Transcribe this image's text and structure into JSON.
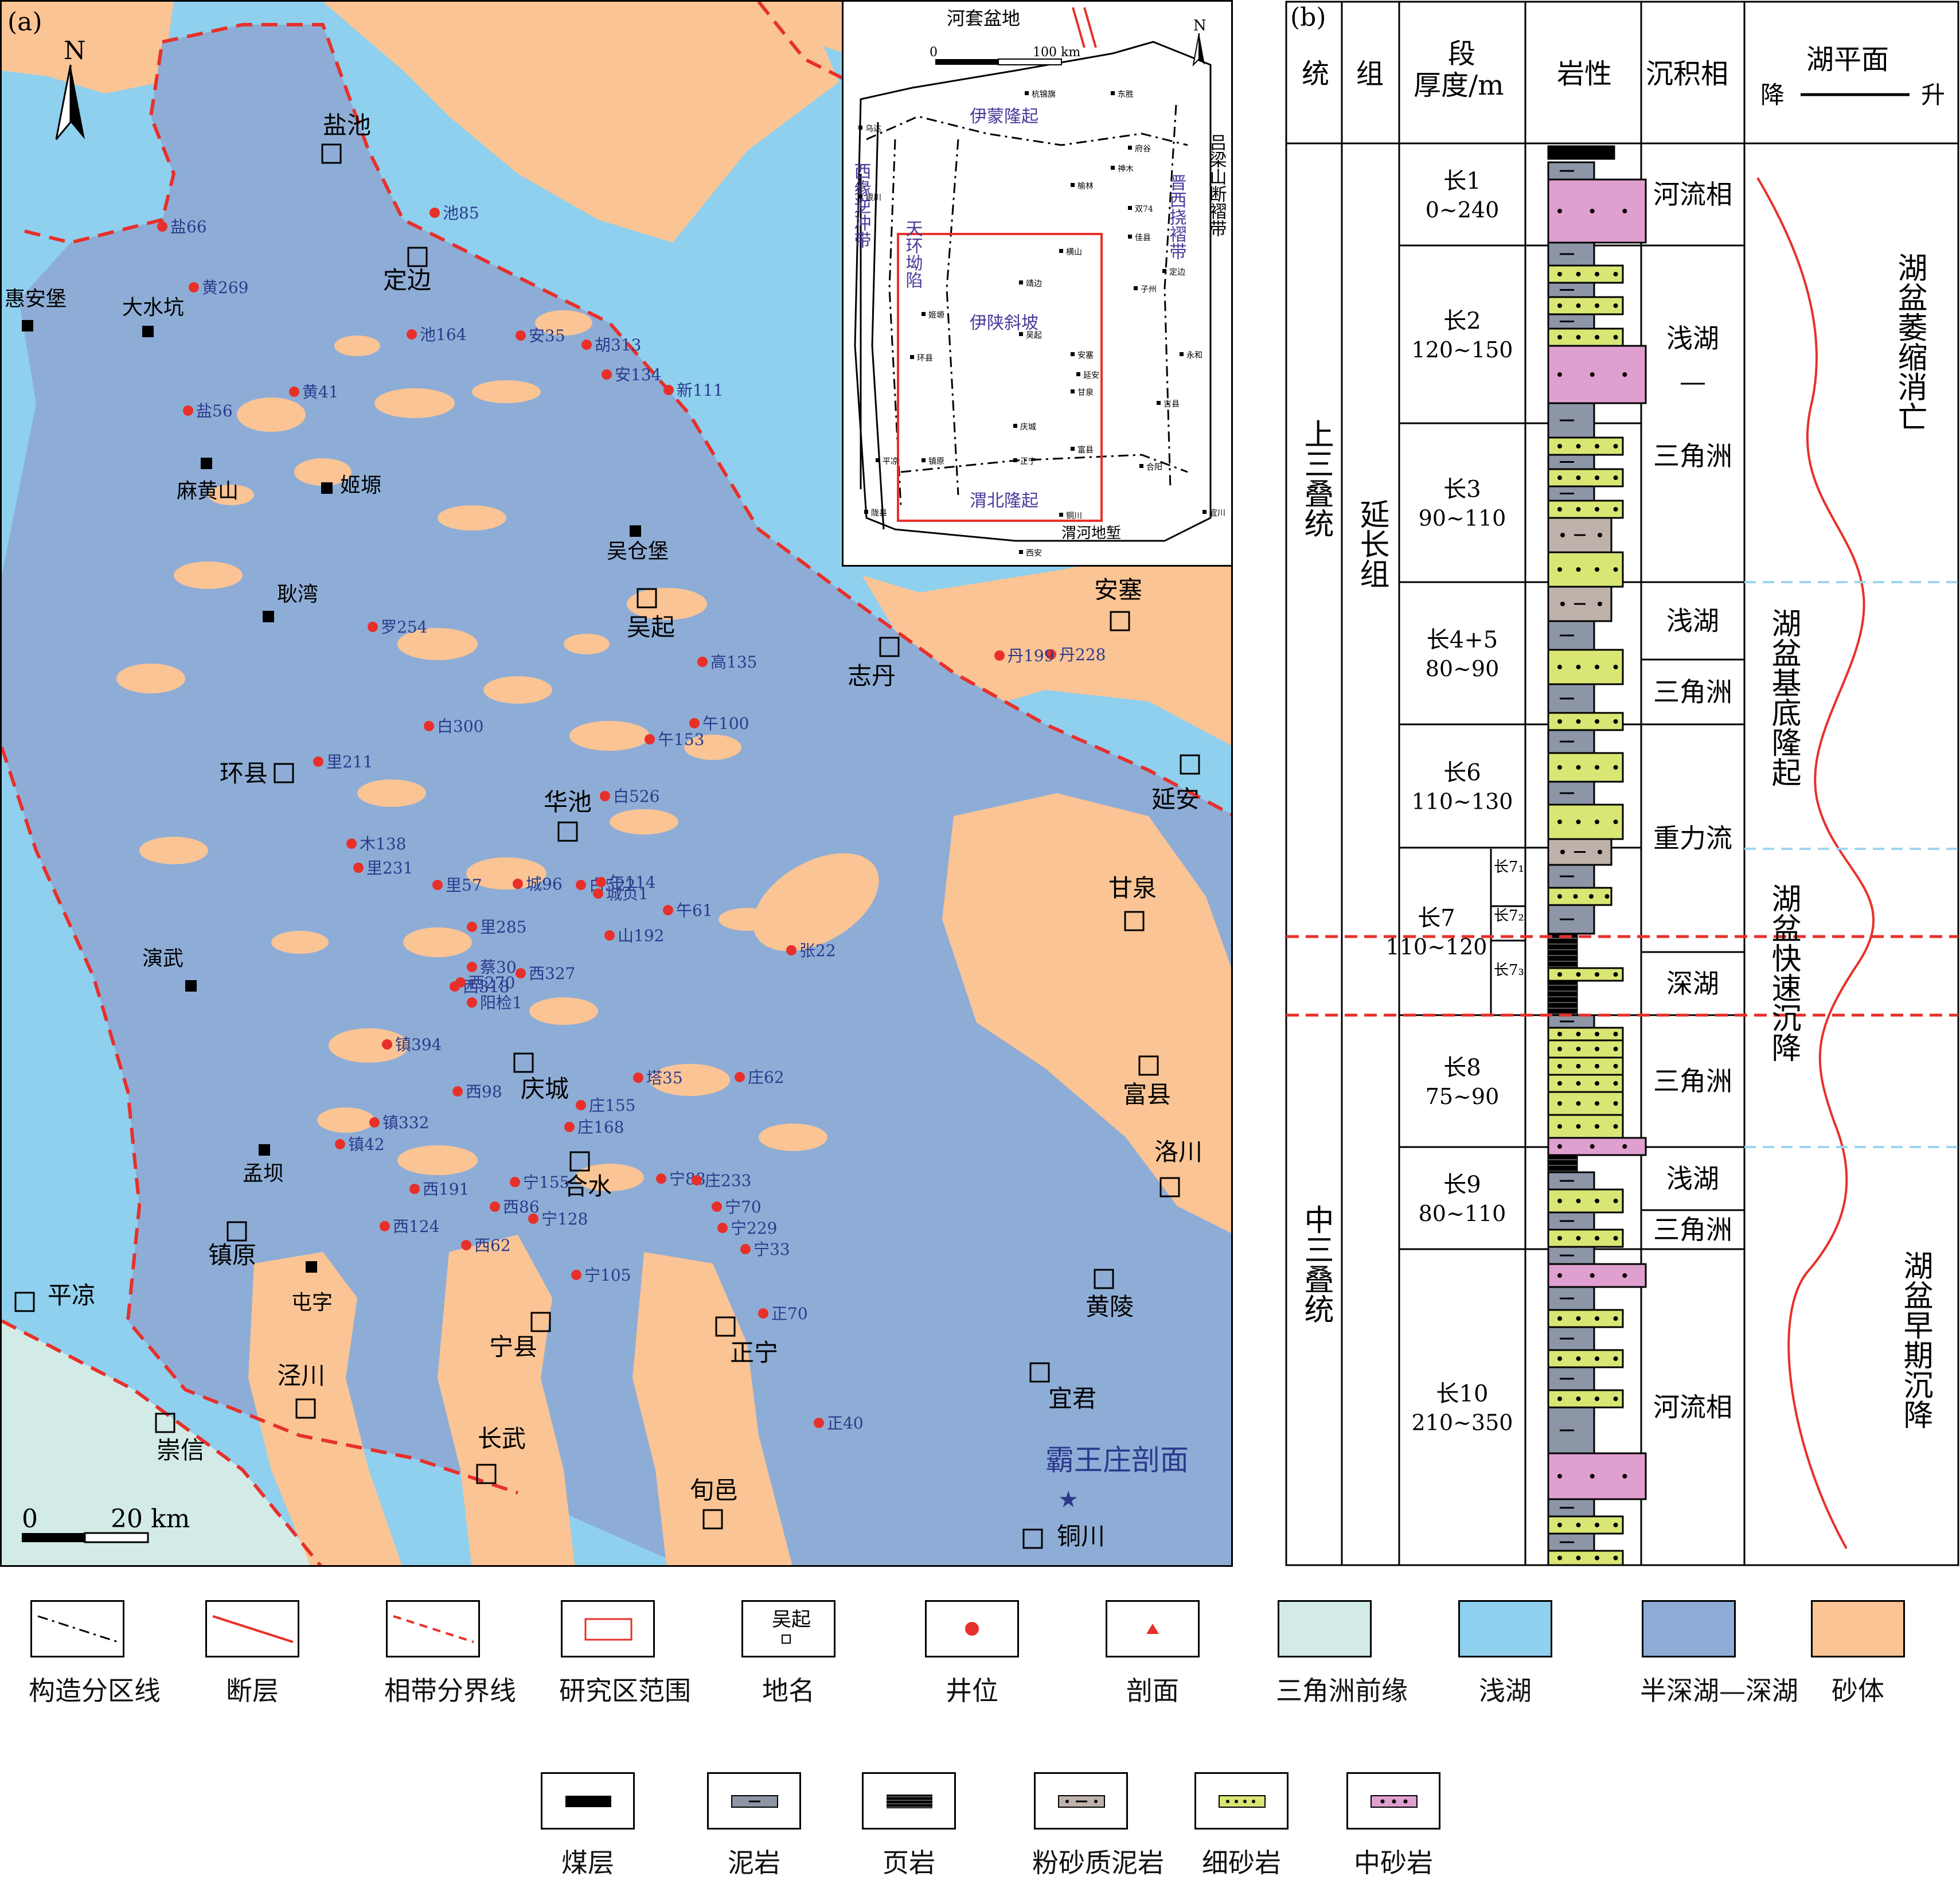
{
  "panel_a": {
    "tag": "(a)",
    "north": "N",
    "scale": {
      "zero": "0",
      "dist": "20 km"
    },
    "cities": [
      "盐池",
      "定边",
      "吴起",
      "志丹",
      "安塞",
      "延安",
      "环县",
      "华池",
      "甘泉",
      "庆城",
      "富县",
      "洛川",
      "合水",
      "镇原",
      "黄陵",
      "平凉",
      "宁县",
      "正宁",
      "泾川",
      "宜君",
      "崇信",
      "长武",
      "旬邑",
      "铜川"
    ],
    "towns": [
      "惠安堡",
      "大水坑",
      "麻黄山",
      "姬塬",
      "吴仓堡",
      "耿湾",
      "演武",
      "孟坝",
      "屯字"
    ],
    "wells": [
      "盐66",
      "池85",
      "黄269",
      "池164",
      "安35",
      "胡313",
      "黄41",
      "安134",
      "新111",
      "盐56",
      "罗254",
      "高135",
      "丹228",
      "丹199",
      "白300",
      "午100",
      "午153",
      "里211",
      "白526",
      "木138",
      "里231",
      "里57",
      "城96",
      "白522",
      "午114",
      "城页1",
      "午61",
      "里285",
      "山192",
      "张22",
      "蔡30",
      "西327",
      "西318",
      "西270",
      "阳检1",
      "镇394",
      "塔35",
      "庄62",
      "西98",
      "庄155",
      "庄168",
      "镇332",
      "镇42",
      "宁155",
      "宁88",
      "庄233",
      "西191",
      "西86",
      "宁70",
      "宁128",
      "宁229",
      "西124",
      "西62",
      "宁33",
      "宁105",
      "正70",
      "正40"
    ],
    "section_label": "霸王庄剖面"
  },
  "inset": {
    "north": "N",
    "scale": {
      "zero": "0",
      "dist": "100 km"
    },
    "basin_top": "河套盆地",
    "basin_bottom": "渭河地堑",
    "units": {
      "yimeng": "伊蒙隆起",
      "weibei": "渭北隆起",
      "yishan": "伊陕斜坡",
      "xiyuan": "西缘逆冲带",
      "tianhuan": "天环坳陷",
      "jinxi": "晋西挠褶带",
      "lvliang": "吕梁山断褶带"
    },
    "places": [
      "杭锦旗",
      "东胜",
      "乌达",
      "银川",
      "神木",
      "府谷",
      "榆林",
      "双74",
      "横山",
      "佳县",
      "定边",
      "靖边",
      "子州",
      "姬塬",
      "吴起",
      "安塞",
      "延安",
      "永和",
      "环县",
      "庆城",
      "甘泉",
      "吉县",
      "平凉",
      "镇原",
      "正宁",
      "富县",
      "合阳",
      "铜川",
      "陇县",
      "宜川",
      "西安"
    ]
  },
  "panel_b": {
    "tag": "(b)",
    "headers": {
      "tong": "统",
      "zu": "组",
      "duan": "段",
      "houdu": "厚度/m",
      "yanxing": "岩性",
      "chenji": "沉积相",
      "hupingmian": "湖平面",
      "jiang": "降",
      "sheng": "升"
    },
    "series": [
      {
        "name": "上三叠统"
      },
      {
        "name": "中三叠统"
      }
    ],
    "formation": "延长组",
    "members": [
      {
        "name": "长1",
        "thick": "0~240"
      },
      {
        "name": "长2",
        "thick": "120~150"
      },
      {
        "name": "长3",
        "thick": "90~110"
      },
      {
        "name": "长4+5",
        "thick": "80~90"
      },
      {
        "name": "长6",
        "thick": "110~130"
      },
      {
        "name": "长7",
        "thick": "110~120"
      },
      {
        "name": "长8",
        "thick": "75~90"
      },
      {
        "name": "长9",
        "thick": "80~110"
      },
      {
        "name": "长10",
        "thick": "210~350"
      }
    ],
    "sub_members": [
      "长7₁",
      "长7₂",
      "长7₃"
    ],
    "facies": [
      "河流相",
      "浅湖",
      "—",
      "三角洲",
      "浅湖",
      "三角洲",
      "重力流",
      "深湖",
      "三角洲",
      "浅湖",
      "三角洲",
      "河流相"
    ],
    "stages": [
      "湖盆萎缩消亡",
      "湖盆基底隆起",
      "湖盆快速沉降",
      "湖盆早期沉降"
    ]
  },
  "legend": {
    "row1": [
      {
        "label": "构造分区线",
        "icon": "dash-dot-line"
      },
      {
        "label": "断层",
        "icon": "red-line"
      },
      {
        "label": "相带分界线",
        "icon": "red-dashed-line"
      },
      {
        "label": "研究区范围",
        "icon": "red-rectangle"
      },
      {
        "label": "地名",
        "icon": "place-square",
        "sample": "吴起"
      },
      {
        "label": "井位",
        "icon": "red-dot"
      },
      {
        "label": "剖面",
        "icon": "red-triangle"
      },
      {
        "label": "三角洲前缘",
        "color": "#d3ebe6"
      },
      {
        "label": "浅湖",
        "color": "#8fd0ee"
      },
      {
        "label": "半深湖—深湖",
        "color": "#8eadd6"
      },
      {
        "label": "砂体",
        "color": "#fac495"
      }
    ],
    "row2": [
      {
        "label": "煤层",
        "icon": "coal"
      },
      {
        "label": "泥岩",
        "icon": "mudstone"
      },
      {
        "label": "页岩",
        "icon": "shale"
      },
      {
        "label": "粉砂质泥岩",
        "icon": "silty-mudstone"
      },
      {
        "label": "细砂岩",
        "icon": "fine-sandstone"
      },
      {
        "label": "中砂岩",
        "icon": "medium-sandstone"
      }
    ]
  },
  "colors": {
    "deep_lake": "#8eadd6",
    "shallow_lake": "#8fd0ee",
    "sand": "#fac495",
    "delta_front": "#d3ebe6",
    "well": "#e8302a",
    "mudstone": "#8c96a6",
    "fine_sand": "#d9e673",
    "medium_sand": "#df9fcf",
    "silty": "#bfb2ab"
  }
}
